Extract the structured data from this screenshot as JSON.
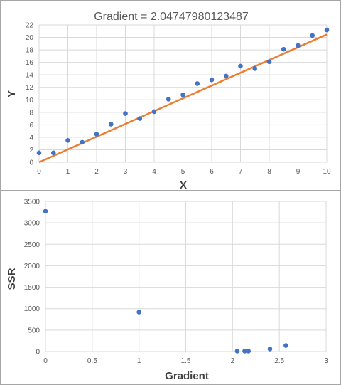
{
  "chart_data": [
    {
      "type": "scatter",
      "title": "Gradient = 2.04747980123487",
      "xlabel": "X",
      "ylabel": "Y",
      "xlim": [
        0,
        10
      ],
      "ylim": [
        0,
        22
      ],
      "xticks": [
        "0",
        "1",
        "2",
        "3",
        "4",
        "5",
        "6",
        "7",
        "8",
        "9",
        "10"
      ],
      "yticks": [
        "0",
        "2",
        "4",
        "6",
        "8",
        "10",
        "12",
        "14",
        "16",
        "18",
        "20",
        "22"
      ],
      "grid": true,
      "point_color": "#4472C4",
      "line_color": "#ED7D31",
      "points": {
        "x": [
          0,
          0.5,
          1,
          1.5,
          2,
          2.5,
          3,
          3.5,
          4,
          4.5,
          5,
          5.5,
          6,
          6.5,
          7,
          7.5,
          8,
          8.5,
          9,
          9.5,
          10
        ],
        "y": [
          1.5,
          1.5,
          3.5,
          3.2,
          4.5,
          6.1,
          7.8,
          7.0,
          8.1,
          10.1,
          10.8,
          12.6,
          13.2,
          13.8,
          15.4,
          15.0,
          16.1,
          18.1,
          18.7,
          20.3,
          21.2
        ]
      },
      "fit_line": {
        "x": [
          0,
          10
        ],
        "y": [
          0,
          20.47
        ]
      }
    },
    {
      "type": "scatter",
      "xlabel": "Gradient",
      "ylabel": "SSR",
      "xlim": [
        0,
        3
      ],
      "ylim": [
        0,
        3500
      ],
      "xticks": [
        "0",
        "0.5",
        "1",
        "1.5",
        "2",
        "2.5",
        "3"
      ],
      "yticks": [
        "0",
        "500",
        "1000",
        "1500",
        "2000",
        "2500",
        "3000",
        "3500"
      ],
      "grid": true,
      "point_color": "#4472C4",
      "points": {
        "x": [
          0,
          1,
          2.05,
          2.13,
          2.17,
          2.4,
          2.57
        ],
        "y": [
          3270,
          920,
          10,
          10,
          10,
          60,
          140
        ]
      }
    }
  ]
}
